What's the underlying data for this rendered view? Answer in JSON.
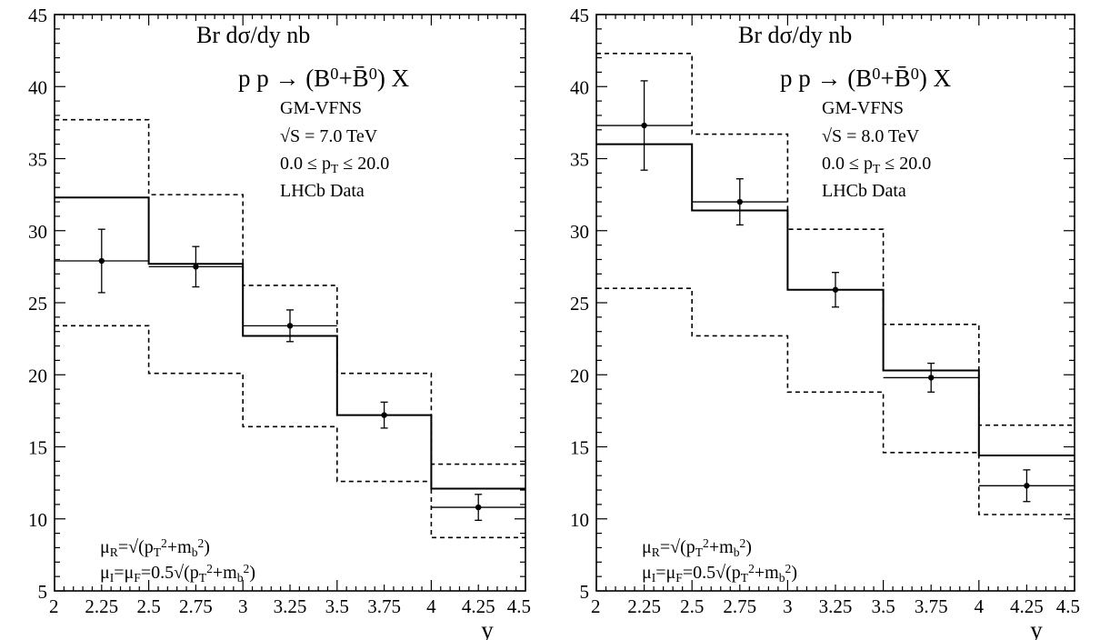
{
  "chart_data": [
    {
      "type": "histogram",
      "annotations": {
        "title": "Br dσ/dy nb",
        "process": "p p → (B⁰+B̄⁰) X",
        "scheme": "GM-VFNS",
        "energy": "√S = 7.0 TeV",
        "pt_range": "0.0 ≤ p_T ≤ 20.0",
        "dataset": "LHCb Data",
        "scale_r": "μ_R=√(p_T²+m_b²)",
        "scale_if": "μ_I=μ_F=0.5√(p_T²+m_b²)"
      },
      "xlabel": "y",
      "xlim": [
        2,
        4.5
      ],
      "ylim": [
        5,
        45
      ],
      "xticks": [
        "2",
        "2.25",
        "2.5",
        "2.75",
        "3",
        "3.25",
        "3.5",
        "3.75",
        "4",
        "4.25",
        "4.5"
      ],
      "yticks": [
        "5",
        "10",
        "15",
        "20",
        "25",
        "30",
        "35",
        "40",
        "45"
      ],
      "bin_edges": [
        2,
        2.5,
        3,
        3.5,
        4,
        4.5
      ],
      "series": [
        {
          "style": "solid",
          "values": [
            32.3,
            27.7,
            22.7,
            17.2,
            12.1
          ]
        },
        {
          "style": "dashed",
          "values": [
            37.7,
            32.5,
            26.2,
            20.1,
            13.8
          ]
        },
        {
          "style": "dashed",
          "values": [
            23.4,
            20.1,
            16.4,
            12.6,
            8.7
          ]
        }
      ],
      "data_points": [
        {
          "x": 2.25,
          "y": 27.9,
          "err": 2.2,
          "xerr": 0.25
        },
        {
          "x": 2.75,
          "y": 27.5,
          "err": 1.4,
          "xerr": 0.25
        },
        {
          "x": 3.25,
          "y": 23.4,
          "err": 1.1,
          "xerr": 0.25
        },
        {
          "x": 3.75,
          "y": 17.2,
          "err": 0.9,
          "xerr": 0.25
        },
        {
          "x": 4.25,
          "y": 10.8,
          "err": 0.9,
          "xerr": 0.25
        }
      ]
    },
    {
      "type": "histogram",
      "annotations": {
        "title": "Br dσ/dy nb",
        "process": "p p → (B⁰+B̄⁰) X",
        "scheme": "GM-VFNS",
        "energy": "√S = 8.0 TeV",
        "pt_range": "0.0 ≤ p_T ≤ 20.0",
        "dataset": "LHCb Data",
        "scale_r": "μ_R=√(p_T²+m_b²)",
        "scale_if": "μ_I=μ_F=0.5√(p_T²+m_b²)"
      },
      "xlabel": "y",
      "xlim": [
        2,
        4.5
      ],
      "ylim": [
        5,
        45
      ],
      "xticks": [
        "2",
        "2.25",
        "2.5",
        "2.75",
        "3",
        "3.25",
        "3.5",
        "3.75",
        "4",
        "4.25",
        "4.5"
      ],
      "yticks": [
        "5",
        "10",
        "15",
        "20",
        "25",
        "30",
        "35",
        "40",
        "45"
      ],
      "bin_edges": [
        2,
        2.5,
        3,
        3.5,
        4,
        4.5
      ],
      "series": [
        {
          "style": "solid",
          "values": [
            36.0,
            31.4,
            25.9,
            20.3,
            14.4
          ]
        },
        {
          "style": "dashed",
          "values": [
            42.3,
            36.7,
            30.1,
            23.5,
            16.5
          ]
        },
        {
          "style": "dashed",
          "values": [
            26.0,
            22.7,
            18.8,
            14.6,
            10.3
          ]
        }
      ],
      "data_points": [
        {
          "x": 2.25,
          "y": 37.3,
          "err": 3.1,
          "xerr": 0.25
        },
        {
          "x": 2.75,
          "y": 32.0,
          "err": 1.6,
          "xerr": 0.25
        },
        {
          "x": 3.25,
          "y": 25.9,
          "err": 1.2,
          "xerr": 0.25
        },
        {
          "x": 3.75,
          "y": 19.8,
          "err": 1.0,
          "xerr": 0.25
        },
        {
          "x": 4.25,
          "y": 12.3,
          "err": 1.1,
          "xerr": 0.25
        }
      ]
    }
  ]
}
